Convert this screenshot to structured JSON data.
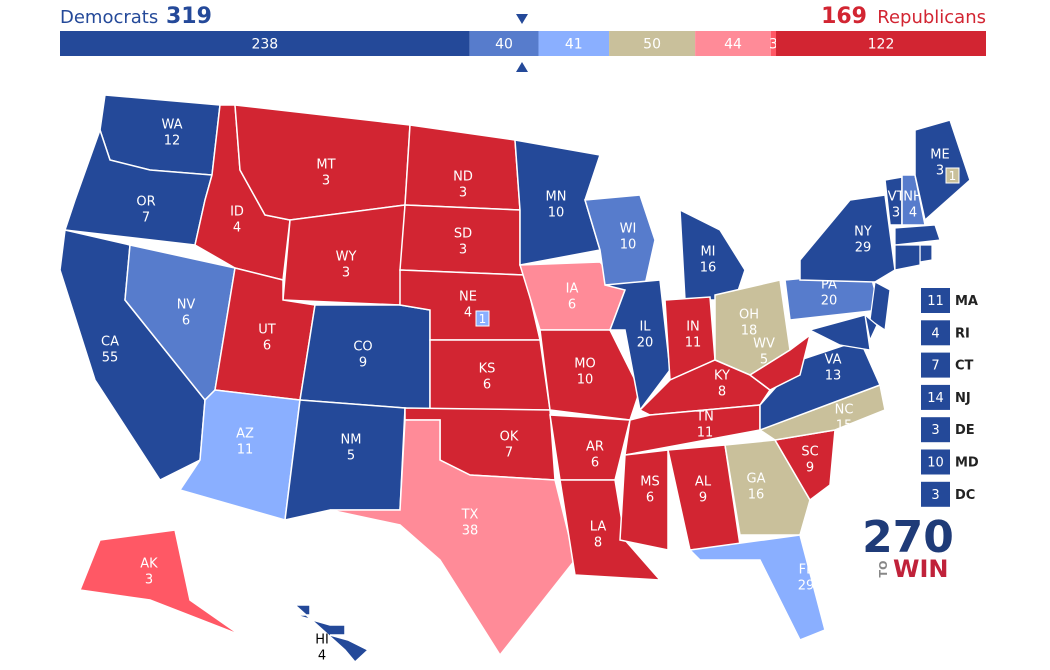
{
  "header": {
    "dem_label": "Democrats",
    "dem_total": "319",
    "rep_total": "169",
    "rep_label": "Republicans"
  },
  "bar": {
    "segments": [
      {
        "value": 238,
        "color": "#244999"
      },
      {
        "value": 40,
        "color": "#577ccc"
      },
      {
        "value": 41,
        "color": "#8aafff"
      },
      {
        "value": 50,
        "color": "#c9c09b"
      },
      {
        "value": 44,
        "color": "#ff8b98"
      },
      {
        "value": 3,
        "color": "#ff5865"
      },
      {
        "value": 122,
        "color": "#d22532"
      }
    ]
  },
  "states": [
    {
      "abbr": "WA",
      "votes": "12",
      "color": "#244999"
    },
    {
      "abbr": "OR",
      "votes": "7",
      "color": "#244999"
    },
    {
      "abbr": "CA",
      "votes": "55",
      "color": "#244999"
    },
    {
      "abbr": "NV",
      "votes": "6",
      "color": "#577ccc"
    },
    {
      "abbr": "ID",
      "votes": "4",
      "color": "#d22532"
    },
    {
      "abbr": "MT",
      "votes": "3",
      "color": "#d22532"
    },
    {
      "abbr": "WY",
      "votes": "3",
      "color": "#d22532"
    },
    {
      "abbr": "UT",
      "votes": "6",
      "color": "#d22532"
    },
    {
      "abbr": "CO",
      "votes": "9",
      "color": "#244999"
    },
    {
      "abbr": "AZ",
      "votes": "11",
      "color": "#8aafff"
    },
    {
      "abbr": "NM",
      "votes": "5",
      "color": "#244999"
    },
    {
      "abbr": "ND",
      "votes": "3",
      "color": "#d22532"
    },
    {
      "abbr": "SD",
      "votes": "3",
      "color": "#d22532"
    },
    {
      "abbr": "NE",
      "votes": "4",
      "color": "#d22532"
    },
    {
      "abbr": "KS",
      "votes": "6",
      "color": "#d22532"
    },
    {
      "abbr": "OK",
      "votes": "7",
      "color": "#d22532"
    },
    {
      "abbr": "TX",
      "votes": "38",
      "color": "#ff8b98"
    },
    {
      "abbr": "MN",
      "votes": "10",
      "color": "#244999"
    },
    {
      "abbr": "IA",
      "votes": "6",
      "color": "#ff8b98"
    },
    {
      "abbr": "MO",
      "votes": "10",
      "color": "#d22532"
    },
    {
      "abbr": "AR",
      "votes": "6",
      "color": "#d22532"
    },
    {
      "abbr": "LA",
      "votes": "8",
      "color": "#d22532"
    },
    {
      "abbr": "WI",
      "votes": "10",
      "color": "#577ccc"
    },
    {
      "abbr": "IL",
      "votes": "20",
      "color": "#244999"
    },
    {
      "abbr": "MI",
      "votes": "16",
      "color": "#244999"
    },
    {
      "abbr": "IN",
      "votes": "11",
      "color": "#d22532"
    },
    {
      "abbr": "OH",
      "votes": "18",
      "color": "#c9c09b"
    },
    {
      "abbr": "KY",
      "votes": "8",
      "color": "#d22532"
    },
    {
      "abbr": "TN",
      "votes": "11",
      "color": "#d22532"
    },
    {
      "abbr": "MS",
      "votes": "6",
      "color": "#d22532"
    },
    {
      "abbr": "AL",
      "votes": "9",
      "color": "#d22532"
    },
    {
      "abbr": "GA",
      "votes": "16",
      "color": "#c9c09b"
    },
    {
      "abbr": "FL",
      "votes": "29",
      "color": "#8aafff"
    },
    {
      "abbr": "SC",
      "votes": "9",
      "color": "#d22532"
    },
    {
      "abbr": "NC",
      "votes": "15",
      "color": "#c9c09b"
    },
    {
      "abbr": "VA",
      "votes": "13",
      "color": "#244999"
    },
    {
      "abbr": "WV",
      "votes": "5",
      "color": "#d22532"
    },
    {
      "abbr": "PA",
      "votes": "20",
      "color": "#577ccc"
    },
    {
      "abbr": "NY",
      "votes": "29",
      "color": "#244999"
    },
    {
      "abbr": "VT",
      "votes": "3",
      "color": "#244999"
    },
    {
      "abbr": "NH",
      "votes": "4",
      "color": "#577ccc"
    },
    {
      "abbr": "ME",
      "votes": "3",
      "color": "#244999"
    },
    {
      "abbr": "AK",
      "votes": "3",
      "color": "#ff5865"
    },
    {
      "abbr": "HI",
      "votes": "4",
      "color": "#244999"
    }
  ],
  "splits": [
    {
      "votes": "1",
      "color": "#c9c09b"
    },
    {
      "votes": "1",
      "color": "#8aafff"
    }
  ],
  "small_states": [
    {
      "abbr": "MA",
      "votes": "11",
      "color": "#244999"
    },
    {
      "abbr": "RI",
      "votes": "4",
      "color": "#244999"
    },
    {
      "abbr": "CT",
      "votes": "7",
      "color": "#244999"
    },
    {
      "abbr": "NJ",
      "votes": "14",
      "color": "#244999"
    },
    {
      "abbr": "DE",
      "votes": "3",
      "color": "#244999"
    },
    {
      "abbr": "MD",
      "votes": "10",
      "color": "#244999"
    },
    {
      "abbr": "DC",
      "votes": "3",
      "color": "#244999"
    }
  ],
  "logo": {
    "number": "270",
    "to": "TO",
    "win": "WIN"
  }
}
